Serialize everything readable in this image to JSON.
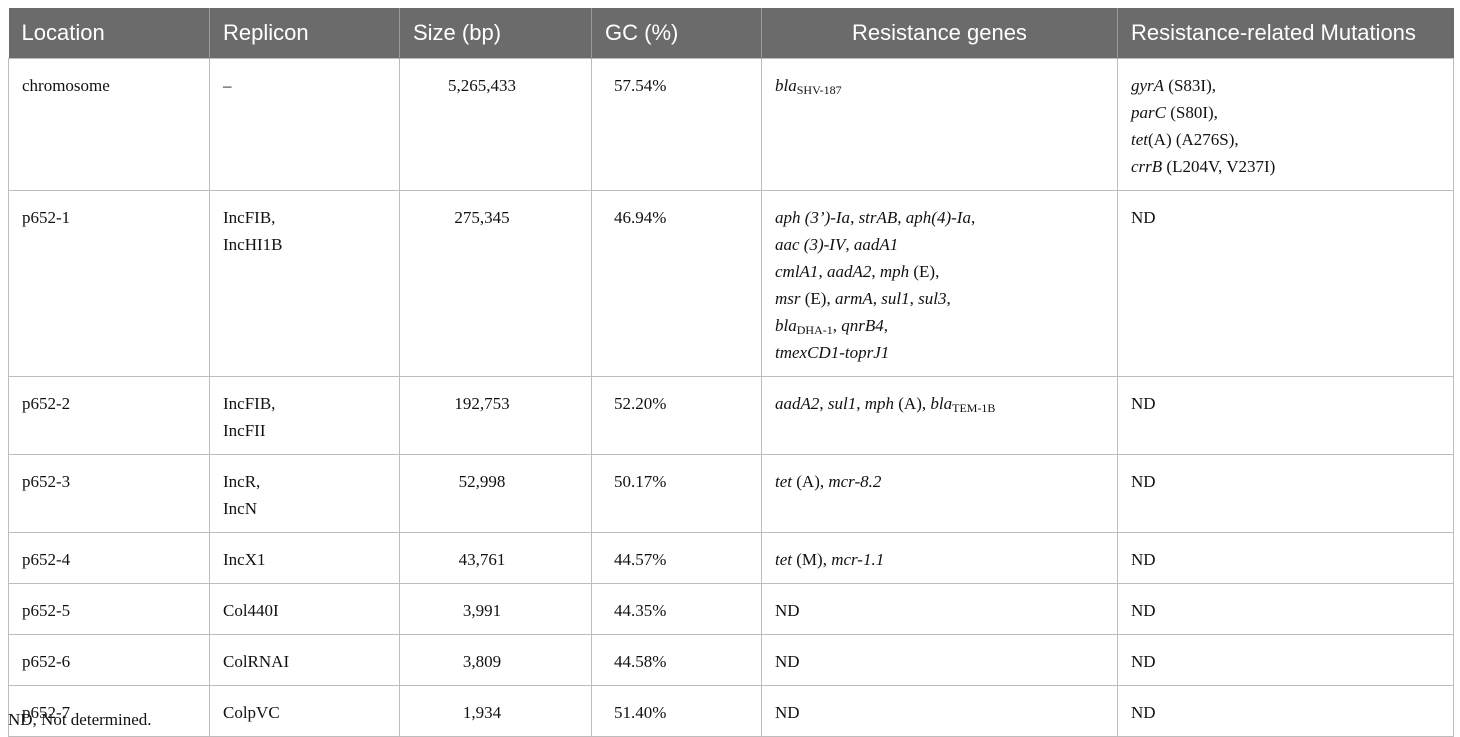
{
  "table": {
    "headers": [
      "Location",
      "Replicon",
      "Size (bp)",
      "GC (%)",
      "Resistance genes",
      "Resistance-related Mutations"
    ],
    "rows": [
      {
        "location": "chromosome",
        "replicon": [
          "–"
        ],
        "size": "5,265,433",
        "gc": "57.54%",
        "genes": [
          [
            {
              "t": "bla",
              "i": true
            },
            {
              "t": "SHV-187",
              "sub": true
            }
          ]
        ],
        "mutations": [
          [
            {
              "t": "gyrA",
              "i": true
            },
            {
              "t": " (S83I),"
            }
          ],
          [
            {
              "t": "parC",
              "i": true
            },
            {
              "t": " (S80I),"
            }
          ],
          [
            {
              "t": "tet",
              "i": true
            },
            {
              "t": "(A) (A276S),"
            }
          ],
          [
            {
              "t": "crrB",
              "i": true
            },
            {
              "t": " (L204V, V237I)"
            }
          ]
        ]
      },
      {
        "location": "p652-1",
        "replicon": [
          "IncFIB,",
          "IncHI1B"
        ],
        "size": "275,345",
        "gc": "46.94%",
        "genes": [
          [
            {
              "t": "aph (3’)-Ia",
              "i": true
            },
            {
              "t": ", "
            },
            {
              "t": "strAB",
              "i": true
            },
            {
              "t": ", "
            },
            {
              "t": "aph(4)-Ia",
              "i": true
            },
            {
              "t": ","
            }
          ],
          [
            {
              "t": "aac (3)-IV",
              "i": true
            },
            {
              "t": ", "
            },
            {
              "t": "aadA1",
              "i": true
            }
          ],
          [
            {
              "t": "cmlA1",
              "i": true
            },
            {
              "t": ", "
            },
            {
              "t": "aadA2",
              "i": true
            },
            {
              "t": ", "
            },
            {
              "t": "mph",
              "i": true
            },
            {
              "t": " (E),"
            }
          ],
          [
            {
              "t": "msr",
              "i": true
            },
            {
              "t": " (E), "
            },
            {
              "t": "armA",
              "i": true
            },
            {
              "t": ", "
            },
            {
              "t": "sul1",
              "i": true
            },
            {
              "t": ", "
            },
            {
              "t": "sul3",
              "i": true
            },
            {
              "t": ","
            }
          ],
          [
            {
              "t": "bla",
              "i": true
            },
            {
              "t": "DHA-1",
              "sub": true
            },
            {
              "t": ", "
            },
            {
              "t": "qnrB4",
              "i": true
            },
            {
              "t": ","
            }
          ],
          [
            {
              "t": "tmexCD1-toprJ1",
              "i": true
            }
          ]
        ],
        "mutations": [
          [
            {
              "t": "ND"
            }
          ]
        ]
      },
      {
        "location": "p652-2",
        "replicon": [
          "IncFIB,",
          "IncFII"
        ],
        "size": "192,753",
        "gc": "52.20%",
        "genes": [
          [
            {
              "t": "aadA2",
              "i": true
            },
            {
              "t": ", "
            },
            {
              "t": "sul1",
              "i": true
            },
            {
              "t": ", "
            },
            {
              "t": "mph",
              "i": true
            },
            {
              "t": " (A), "
            },
            {
              "t": "bla",
              "i": true
            },
            {
              "t": "TEM-1B",
              "sub": true
            }
          ]
        ],
        "mutations": [
          [
            {
              "t": "ND"
            }
          ]
        ]
      },
      {
        "location": "p652-3",
        "replicon": [
          "IncR,",
          "IncN"
        ],
        "size": "52,998",
        "gc": "50.17%",
        "genes": [
          [
            {
              "t": "tet",
              "i": true
            },
            {
              "t": " (A), "
            },
            {
              "t": "mcr-8.2",
              "i": true
            }
          ]
        ],
        "mutations": [
          [
            {
              "t": "ND"
            }
          ]
        ]
      },
      {
        "location": "p652-4",
        "replicon": [
          "IncX1"
        ],
        "size": "43,761",
        "gc": "44.57%",
        "genes": [
          [
            {
              "t": "tet",
              "i": true
            },
            {
              "t": " (M), "
            },
            {
              "t": "mcr-1.1",
              "i": true
            }
          ]
        ],
        "mutations": [
          [
            {
              "t": "ND"
            }
          ]
        ]
      },
      {
        "location": "p652-5",
        "replicon": [
          "Col440I"
        ],
        "size": "3,991",
        "gc": "44.35%",
        "genes": [
          [
            {
              "t": "ND"
            }
          ]
        ],
        "mutations": [
          [
            {
              "t": "ND"
            }
          ]
        ]
      },
      {
        "location": "p652-6",
        "replicon": [
          "ColRNAI"
        ],
        "size": "3,809",
        "gc": "44.58%",
        "genes": [
          [
            {
              "t": "ND"
            }
          ]
        ],
        "mutations": [
          [
            {
              "t": "ND"
            }
          ]
        ]
      },
      {
        "location": "p652-7",
        "replicon": [
          "ColpVC"
        ],
        "size": "1,934",
        "gc": "51.40%",
        "genes": [
          [
            {
              "t": "ND"
            }
          ]
        ],
        "mutations": [
          [
            {
              "t": "ND"
            }
          ]
        ]
      }
    ]
  },
  "footnote": "ND, Not determined."
}
